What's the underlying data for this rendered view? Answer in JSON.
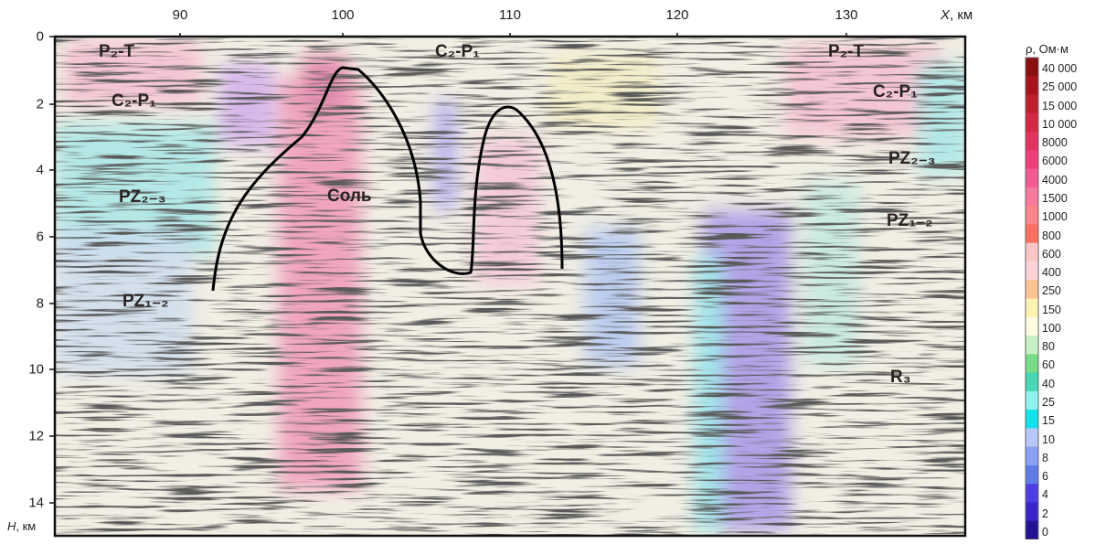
{
  "x_axis": {
    "ticks": [
      "90",
      "100",
      "110",
      "120",
      "130"
    ],
    "title_var": "X",
    "title_unit": ", км"
  },
  "y_axis": {
    "ticks": [
      "0",
      "2",
      "4",
      "6",
      "8",
      "10",
      "12",
      "14"
    ],
    "title_var": "H",
    "title_unit": ", км"
  },
  "labels": {
    "p2t_left": "P₂-T",
    "c2p1_top": "C₂-P₁",
    "p2t_right": "P₂-T",
    "c2p1_left": "C₂-P₁",
    "c2p1_right": "C₂-P₁",
    "pz23_left": "PZ₂₋₃",
    "pz23_right": "PZ₂₋₃",
    "salt": "Соль",
    "pz12_left": "PZ₁₋₂",
    "pz12_right": "PZ₁₋₂",
    "r3": "R₃"
  },
  "colorbar": {
    "title": "ρ, Ом·м",
    "levels": [
      {
        "label": "40 000",
        "color": "#8a0f12"
      },
      {
        "label": "25 000",
        "color": "#a8141e"
      },
      {
        "label": "15 000",
        "color": "#c01f30"
      },
      {
        "label": "10 000",
        "color": "#d42744"
      },
      {
        "label": "8000",
        "color": "#e23360"
      },
      {
        "label": "6000",
        "color": "#ee3e7c"
      },
      {
        "label": "4000",
        "color": "#f35a94"
      },
      {
        "label": "1500",
        "color": "#f77a9c"
      },
      {
        "label": "1000",
        "color": "#f9868a"
      },
      {
        "label": "800",
        "color": "#fb7060"
      },
      {
        "label": "600",
        "color": "#fbc6c6"
      },
      {
        "label": "400",
        "color": "#fcd2d8"
      },
      {
        "label": "250",
        "color": "#fbc490"
      },
      {
        "label": "150",
        "color": "#fcf3b2"
      },
      {
        "label": "100",
        "color": "#fffce0"
      },
      {
        "label": "80",
        "color": "#c8f1c4"
      },
      {
        "label": "60",
        "color": "#76dc86"
      },
      {
        "label": "40",
        "color": "#47d7b4"
      },
      {
        "label": "25",
        "color": "#8ef2ee"
      },
      {
        "label": "15",
        "color": "#12e2ea"
      },
      {
        "label": "10",
        "color": "#b8c6f8"
      },
      {
        "label": "8",
        "color": "#8aa0f2"
      },
      {
        "label": "6",
        "color": "#5f7ce6"
      },
      {
        "label": "4",
        "color": "#4d3fe4"
      },
      {
        "label": "2",
        "color": "#3a24c8"
      },
      {
        "label": "0",
        "color": "#231294"
      }
    ]
  },
  "annotation": {
    "salt_contour": "black outline of salt diapir"
  }
}
